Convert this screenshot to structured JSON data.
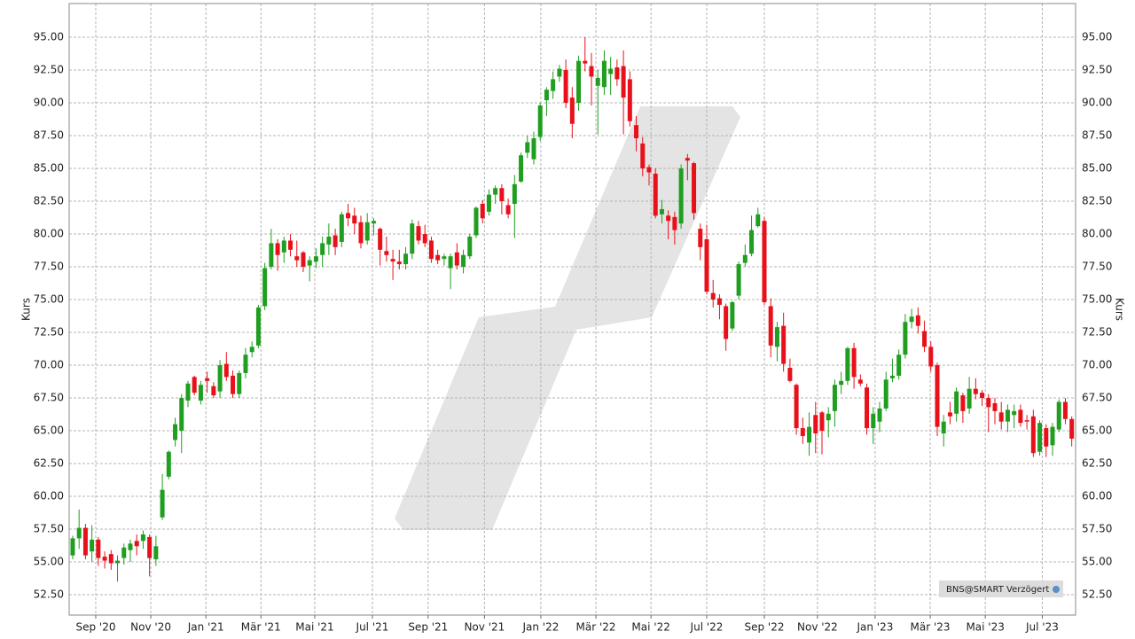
{
  "chart_data": {
    "type": "candlestick",
    "y_label": "Kurs",
    "badge": "BNS@SMART Verzögert",
    "up_color": "#1f9e1f",
    "down_color": "#e8101a",
    "grid": true,
    "xlim": [
      -0.55,
      156.6
    ],
    "xticks": [
      {
        "value": 3.6,
        "label": "Sep '20"
      },
      {
        "value": 12.2,
        "label": "Nov '20"
      },
      {
        "value": 20.8,
        "label": "Jan '21"
      },
      {
        "value": 29.4,
        "label": "Mär '21"
      },
      {
        "value": 37.8,
        "label": "Mai '21"
      },
      {
        "value": 46.8,
        "label": "Jul '21"
      },
      {
        "value": 55.5,
        "label": "Sep '21"
      },
      {
        "value": 64.3,
        "label": "Nov '21"
      },
      {
        "value": 73.1,
        "label": "Jan '22"
      },
      {
        "value": 81.7,
        "label": "Mär '22"
      },
      {
        "value": 90.3,
        "label": "Mai '22"
      },
      {
        "value": 99.0,
        "label": "Jul '22"
      },
      {
        "value": 108.0,
        "label": "Sep '22"
      },
      {
        "value": 116.3,
        "label": "Nov '22"
      },
      {
        "value": 125.3,
        "label": "Jan '23"
      },
      {
        "value": 133.9,
        "label": "Mär '23"
      },
      {
        "value": 142.5,
        "label": "Mai '23"
      },
      {
        "value": 151.4,
        "label": "Jul '23"
      }
    ],
    "ylim": [
      50.95,
      97.57
    ],
    "yticks": [
      {
        "value": 52.5,
        "label": "52.50"
      },
      {
        "value": 55,
        "label": "55.00"
      },
      {
        "value": 57.5,
        "label": "57.50"
      },
      {
        "value": 60,
        "label": "60.00"
      },
      {
        "value": 62.5,
        "label": "62.50"
      },
      {
        "value": 65,
        "label": "65.00"
      },
      {
        "value": 67.5,
        "label": "67.50"
      },
      {
        "value": 70,
        "label": "70.00"
      },
      {
        "value": 72.5,
        "label": "72.50"
      },
      {
        "value": 75,
        "label": "75.00"
      },
      {
        "value": 77.5,
        "label": "77.50"
      },
      {
        "value": 80,
        "label": "80.00"
      },
      {
        "value": 82.5,
        "label": "82.50"
      },
      {
        "value": 85,
        "label": "85.00"
      },
      {
        "value": 87.5,
        "label": "87.50"
      },
      {
        "value": 90,
        "label": "90.00"
      },
      {
        "value": 92.5,
        "label": "92.50"
      },
      {
        "value": 95,
        "label": "95.00"
      }
    ],
    "ohlc": [
      [
        55.5,
        57,
        55.2,
        56.8
      ],
      [
        56.8,
        59,
        56,
        57.6
      ],
      [
        57.6,
        57.9,
        55.2,
        55.5
      ],
      [
        55.8,
        57.8,
        55,
        56.7
      ],
      [
        56.7,
        56.9,
        54.7,
        55.3
      ],
      [
        55.4,
        55.8,
        54.5,
        55.1
      ],
      [
        55.6,
        55.9,
        54.4,
        54.9
      ],
      [
        54.9,
        55.5,
        53.5,
        55.1
      ],
      [
        55.3,
        56.4,
        54.8,
        56.1
      ],
      [
        55.9,
        56.7,
        55,
        56.4
      ],
      [
        56.6,
        57.1,
        55.5,
        56.2
      ],
      [
        56.6,
        57.4,
        56,
        57.1
      ],
      [
        56.9,
        57.1,
        53.9,
        55.3
      ],
      [
        55.2,
        57,
        54.7,
        56.2
      ],
      [
        58.4,
        61.7,
        58.2,
        60.5
      ],
      [
        61.5,
        63.5,
        61.3,
        63.4
      ],
      [
        64.3,
        66,
        63.8,
        65.5
      ],
      [
        65,
        67.8,
        63.3,
        67.5
      ],
      [
        67.3,
        68.8,
        66.8,
        68.6
      ],
      [
        69.1,
        69.2,
        67.7,
        67.9
      ],
      [
        67.3,
        68.8,
        67,
        68.5
      ],
      [
        69,
        69.5,
        67.9,
        68.8
      ],
      [
        68.4,
        68.7,
        67.5,
        67.7
      ],
      [
        68,
        70.4,
        67.5,
        70
      ],
      [
        70.1,
        71,
        68.8,
        69.1
      ],
      [
        69.2,
        69.6,
        67.5,
        67.8
      ],
      [
        67.8,
        69.6,
        67.5,
        69.4
      ],
      [
        69.4,
        71.3,
        69,
        70.8
      ],
      [
        71,
        71.8,
        70.6,
        71.4
      ],
      [
        71.5,
        74.6,
        71.3,
        74.4
      ],
      [
        74.5,
        77.8,
        74.2,
        77.4
      ],
      [
        77.5,
        80.4,
        77.3,
        79.3
      ],
      [
        79.3,
        79.6,
        77.2,
        78.4
      ],
      [
        78.6,
        79.8,
        77.8,
        79.5
      ],
      [
        79.5,
        80,
        78.3,
        78.8
      ],
      [
        78.3,
        79.5,
        77.5,
        78
      ],
      [
        78.6,
        78.7,
        77.1,
        77.5
      ],
      [
        77.6,
        78.3,
        76.4,
        78
      ],
      [
        77.9,
        78.9,
        77.4,
        78.3
      ],
      [
        78.4,
        79.8,
        77.5,
        79.3
      ],
      [
        79.2,
        80.8,
        78.4,
        79.8
      ],
      [
        79.9,
        80.4,
        78.4,
        79
      ],
      [
        79.4,
        81.7,
        79,
        81.5
      ],
      [
        81.6,
        82.3,
        80.6,
        81.2
      ],
      [
        81.4,
        82,
        80,
        80.8
      ],
      [
        80.9,
        81.4,
        78.9,
        79.3
      ],
      [
        79.5,
        81.6,
        79.2,
        80.9
      ],
      [
        80.8,
        81.2,
        79.9,
        81
      ],
      [
        80.4,
        80.5,
        77.6,
        78.8
      ],
      [
        78.7,
        79.8,
        77.9,
        78.4
      ],
      [
        78.1,
        78.8,
        76.5,
        77.9
      ],
      [
        77.9,
        78.8,
        77.3,
        77.7
      ],
      [
        77.7,
        79,
        77.3,
        78.5
      ],
      [
        78.5,
        81.1,
        78.1,
        80.8
      ],
      [
        80.6,
        81,
        79.2,
        79.5
      ],
      [
        80,
        80.7,
        79,
        79.3
      ],
      [
        79.5,
        79.8,
        77.8,
        78.1
      ],
      [
        78.4,
        78.8,
        77.7,
        78
      ],
      [
        78.1,
        78.5,
        77.6,
        78.3
      ],
      [
        77.4,
        78.5,
        75.8,
        78.3
      ],
      [
        78.6,
        79.3,
        77.3,
        77.6
      ],
      [
        77.5,
        78.8,
        77,
        78.4
      ],
      [
        78.3,
        80,
        78.1,
        79.8
      ],
      [
        79.9,
        82.1,
        79.7,
        82
      ],
      [
        82.3,
        82.6,
        80.8,
        81.2
      ],
      [
        81.7,
        83.4,
        81.4,
        83
      ],
      [
        83,
        83.7,
        82.3,
        83.5
      ],
      [
        83.5,
        83.8,
        81.5,
        82.5
      ],
      [
        82.2,
        82.7,
        81.2,
        81.5
      ],
      [
        82.3,
        84.5,
        79.7,
        83.8
      ],
      [
        84,
        86.2,
        83.9,
        86
      ],
      [
        86.2,
        87.5,
        85.8,
        87
      ],
      [
        85.7,
        87.8,
        85.3,
        87.3
      ],
      [
        87.4,
        90,
        87.1,
        89.8
      ],
      [
        90.2,
        91.2,
        89,
        91
      ],
      [
        90.9,
        92.4,
        90.3,
        91.8
      ],
      [
        92,
        92.9,
        91.6,
        92.6
      ],
      [
        92.5,
        93.3,
        89.6,
        90
      ],
      [
        90.4,
        91.2,
        87.3,
        88.4
      ],
      [
        90,
        93.6,
        89.4,
        93.2
      ],
      [
        93.2,
        95,
        92.4,
        93
      ],
      [
        92.8,
        93.8,
        89.8,
        92
      ],
      [
        91.3,
        92.5,
        87.6,
        91.9
      ],
      [
        91.2,
        94,
        90.6,
        93.2
      ],
      [
        92.2,
        93.5,
        90.6,
        92.6
      ],
      [
        92.7,
        93.3,
        91.3,
        91.8
      ],
      [
        92.8,
        94,
        87.6,
        90.4
      ],
      [
        91.8,
        92.4,
        88.2,
        88.6
      ],
      [
        88.3,
        89,
        86.3,
        87.3
      ],
      [
        86.9,
        87.4,
        84.4,
        85
      ],
      [
        85.1,
        85.3,
        83.7,
        84.7
      ],
      [
        84.6,
        85,
        81.2,
        81.4
      ],
      [
        81.5,
        82.6,
        80.8,
        81.9
      ],
      [
        81.4,
        81.8,
        79.6,
        81
      ],
      [
        81.3,
        81.7,
        79.2,
        80.3
      ],
      [
        80.8,
        85.3,
        80.4,
        85
      ],
      [
        85.8,
        86.1,
        84.1,
        85.6
      ],
      [
        85.4,
        85.5,
        81.1,
        81.6
      ],
      [
        80.4,
        80.8,
        78,
        79
      ],
      [
        79.6,
        80.7,
        75.4,
        75.6
      ],
      [
        75.5,
        76.5,
        74.4,
        75
      ],
      [
        75.1,
        75.4,
        73.5,
        74.6
      ],
      [
        74.5,
        74.7,
        71.1,
        72
      ],
      [
        72.8,
        74.9,
        72.6,
        74.8
      ],
      [
        75.3,
        77.9,
        75,
        77.7
      ],
      [
        77.8,
        79.2,
        77.5,
        78.4
      ],
      [
        78.5,
        81.4,
        78.3,
        80.3
      ],
      [
        80.6,
        82,
        80.5,
        81.5
      ],
      [
        81,
        81.3,
        74.6,
        74.8
      ],
      [
        74.5,
        75.1,
        70.6,
        71.5
      ],
      [
        71.4,
        73.3,
        70.3,
        72.9
      ],
      [
        73,
        74,
        69.5,
        70.1
      ],
      [
        69.8,
        70.5,
        68.7,
        68.8
      ],
      [
        68.5,
        68.6,
        64.7,
        65.2
      ],
      [
        65.2,
        66,
        64,
        64.6
      ],
      [
        64.1,
        66.4,
        63.1,
        65.3
      ],
      [
        66.2,
        67.2,
        63.3,
        64.8
      ],
      [
        66.4,
        66.5,
        63.2,
        65
      ],
      [
        65.8,
        66.8,
        64.5,
        66.3
      ],
      [
        66.5,
        68.9,
        65.3,
        68.5
      ],
      [
        68.5,
        69.5,
        67.8,
        68.8
      ],
      [
        68.8,
        71.4,
        68.5,
        71.3
      ],
      [
        71.3,
        71.7,
        68.2,
        69.1
      ],
      [
        68.9,
        69.3,
        68.4,
        68.6
      ],
      [
        68.3,
        68.6,
        64.7,
        65.2
      ],
      [
        65.2,
        66.8,
        64,
        66.3
      ],
      [
        65.7,
        67.2,
        64.9,
        66.7
      ],
      [
        66.7,
        69.5,
        66.5,
        68.9
      ],
      [
        69,
        70.5,
        68.7,
        69.2
      ],
      [
        69.2,
        71.2,
        68.9,
        70.8
      ],
      [
        70.8,
        73.9,
        70.5,
        73.3
      ],
      [
        73.3,
        74.3,
        72.8,
        73.7
      ],
      [
        73.8,
        74.4,
        72.4,
        73
      ],
      [
        72.6,
        73.4,
        71,
        71.4
      ],
      [
        71.4,
        71.8,
        69.5,
        69.9
      ],
      [
        70,
        70.2,
        64.6,
        65.3
      ],
      [
        64.8,
        66.2,
        63.8,
        65.7
      ],
      [
        66.4,
        67.2,
        65.5,
        66.1
      ],
      [
        66.3,
        68.3,
        65.7,
        68
      ],
      [
        67.7,
        67.9,
        65.6,
        66.5
      ],
      [
        66.7,
        69.1,
        66.3,
        68.2
      ],
      [
        68.2,
        69,
        67.4,
        67.8
      ],
      [
        67.9,
        68.1,
        66.9,
        67.5
      ],
      [
        67.5,
        67.8,
        64.9,
        66.8
      ],
      [
        67.1,
        67.5,
        65.5,
        66.5
      ],
      [
        66.4,
        67.2,
        65.1,
        65.7
      ],
      [
        65.7,
        67,
        64.9,
        66.6
      ],
      [
        66.2,
        67,
        65.2,
        66.5
      ],
      [
        66.6,
        67,
        65.3,
        65.6
      ],
      [
        65.8,
        66.2,
        65.1,
        65.7
      ],
      [
        66.1,
        66.6,
        63,
        63.3
      ],
      [
        63.4,
        65.8,
        63.1,
        65.6
      ],
      [
        65.2,
        65.5,
        63,
        63.8
      ],
      [
        63.9,
        65.6,
        63.1,
        65.3
      ],
      [
        65.1,
        67.4,
        64.9,
        67.2
      ],
      [
        67.2,
        67.5,
        65.5,
        65.9
      ],
      [
        65.9,
        66.1,
        63.8,
        64.4
      ]
    ]
  }
}
